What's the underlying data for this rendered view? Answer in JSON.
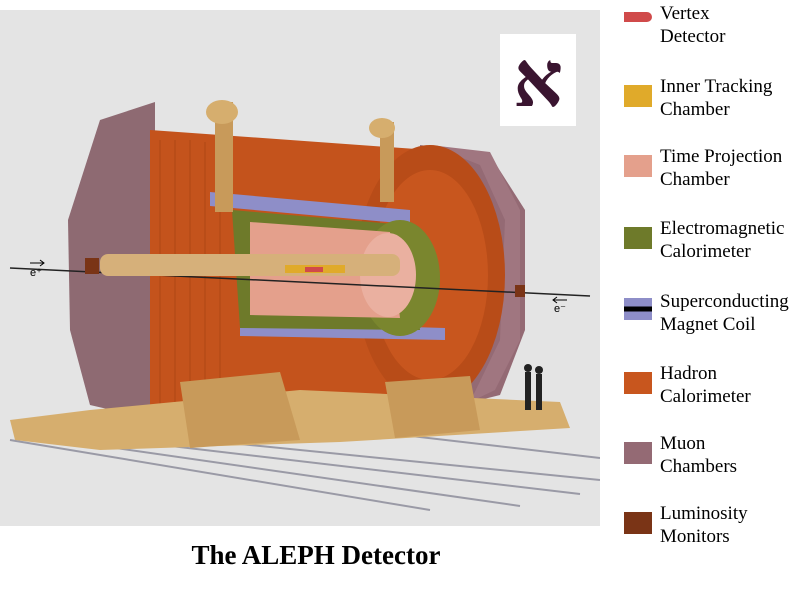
{
  "caption": "The ALEPH Detector",
  "logo": {
    "glyph": "א",
    "color": "#3a1530"
  },
  "beams": {
    "left": "e⁺",
    "right": "e⁻"
  },
  "legend": [
    {
      "label": "Vertex\nDetector",
      "color": "#d04a4a",
      "swatch": "vertex"
    },
    {
      "label": "Inner Tracking\nChamber",
      "color": "#e0aa2a",
      "swatch": "plain"
    },
    {
      "label": "Time Projection\nChamber",
      "color": "#e4a08c",
      "swatch": "plain"
    },
    {
      "label": "Electromagnetic\nCalorimeter",
      "color": "#6e7a2a",
      "swatch": "plain"
    },
    {
      "label": "Superconducting\nMagnet Coil",
      "color": "#8e8ec8",
      "swatch": "coil"
    },
    {
      "label": "Hadron\nCalorimeter",
      "color": "#c8561e",
      "swatch": "plain"
    },
    {
      "label": "Muon\nChambers",
      "color": "#946a74",
      "swatch": "plain"
    },
    {
      "label": "Luminosity\nMonitors",
      "color": "#7a3416",
      "swatch": "plain"
    }
  ]
}
